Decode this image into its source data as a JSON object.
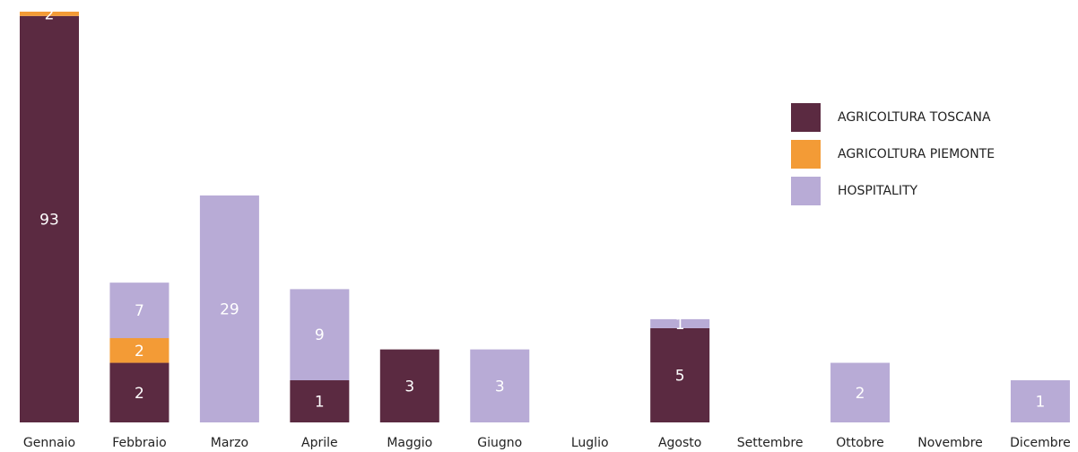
{
  "chart_data": {
    "type": "stacked_bar",
    "categories": [
      "Gennaio",
      "Febbraio",
      "Marzo",
      "Aprile",
      "Maggio",
      "Giugno",
      "Luglio",
      "Agosto",
      "Settembre",
      "Ottobre",
      "Novembre",
      "Dicembre"
    ],
    "series": [
      {
        "name": "AGRICOLTURA TOSCANA",
        "color": "#5b2a41",
        "values": [
          93,
          2,
          null,
          1,
          3,
          null,
          null,
          5,
          null,
          null,
          null,
          null
        ]
      },
      {
        "name": "AGRICOLTURA PIEMONTE",
        "color": "#f39b36",
        "values": [
          2,
          2,
          null,
          null,
          null,
          null,
          null,
          null,
          null,
          null,
          null,
          null
        ]
      },
      {
        "name": "HOSPITALITY",
        "color": "#b8abd6",
        "values": [
          null,
          7,
          29,
          9,
          null,
          3,
          null,
          1,
          null,
          2,
          null,
          1
        ]
      }
    ],
    "ylim": [
      0,
      95
    ],
    "scale": "sqrt",
    "legend": "upper right"
  }
}
